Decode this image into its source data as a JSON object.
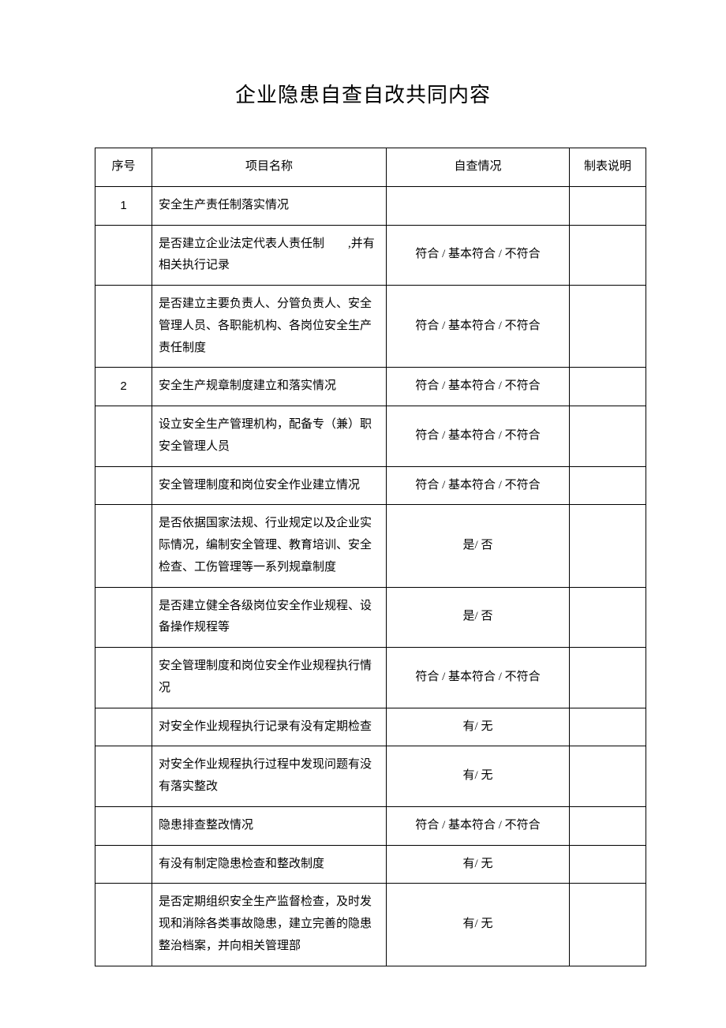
{
  "title": "企业隐患自查自改共同内容",
  "columns": {
    "seq": "序号",
    "item": "项目名称",
    "status": "自查情况",
    "note": "制表说明"
  },
  "rows": [
    {
      "seq": "1",
      "item": "安全生产责任制落实情况",
      "status": "",
      "note": ""
    },
    {
      "seq": "",
      "item": "是否建立企业法定代表人责任制　　,并有相关执行记录",
      "status": "符合 / 基本符合 / 不符合",
      "note": ""
    },
    {
      "seq": "",
      "item": "是否建立主要负责人、分管负责人、安全管理人员、各职能机构、各岗位安全生产责任制度",
      "status": "符合 / 基本符合 / 不符合",
      "note": ""
    },
    {
      "seq": "2",
      "item": "安全生产规章制度建立和落实情况",
      "status": "符合 / 基本符合 / 不符合",
      "note": ""
    },
    {
      "seq": "",
      "item": "设立安全生产管理机构，配备专（兼）职安全管理人员",
      "status": "符合 / 基本符合 / 不符合",
      "note": ""
    },
    {
      "seq": "",
      "item": "安全管理制度和岗位安全作业建立情况",
      "status": "符合 / 基本符合 / 不符合",
      "note": ""
    },
    {
      "seq": "",
      "item": "是否依据国家法规、行业规定以及企业实际情况，编制安全管理、教育培训、安全检查、工伤管理等一系列规章制度",
      "status": "是/ 否",
      "note": ""
    },
    {
      "seq": "",
      "item": "是否建立健全各级岗位安全作业规程、设备操作规程等",
      "status": "是/ 否",
      "note": ""
    },
    {
      "seq": "",
      "item": "安全管理制度和岗位安全作业规程执行情况",
      "status": "符合 / 基本符合 / 不符合",
      "note": ""
    },
    {
      "seq": "",
      "item": "对安全作业规程执行记录有没有定期检查",
      "status": "有/ 无",
      "note": ""
    },
    {
      "seq": "",
      "item": "对安全作业规程执行过程中发现问题有没有落实整改",
      "status": "有/ 无",
      "note": ""
    },
    {
      "seq": "",
      "item": "隐患排查整改情况",
      "status": "符合 / 基本符合 / 不符合",
      "note": ""
    },
    {
      "seq": "",
      "item": "有没有制定隐患检查和整改制度",
      "status": "有/ 无",
      "note": ""
    },
    {
      "seq": "",
      "item": "是否定期组织安全生产监督检查，及时发现和消除各类事故隐患，建立完善的隐患整治档案，并向相关管理部",
      "status": "有/ 无",
      "note": ""
    }
  ],
  "styles": {
    "background_color": "#ffffff",
    "border_color": "#000000",
    "title_fontsize": 26,
    "cell_fontsize": 15,
    "line_height": 1.85
  }
}
